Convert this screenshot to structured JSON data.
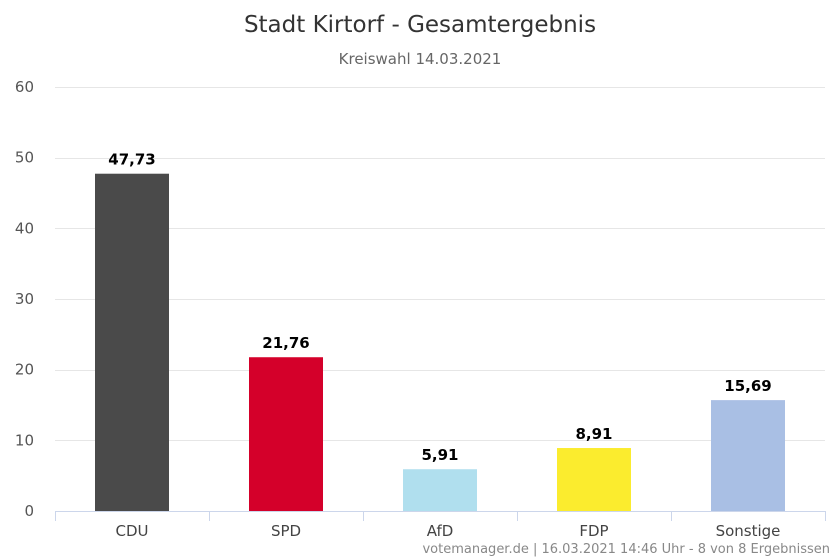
{
  "chart_data": {
    "type": "bar",
    "title": "Stadt Kirtorf - Gesamtergebnis",
    "subtitle": "Kreiswahl 14.03.2021",
    "categories": [
      "CDU",
      "SPD",
      "AfD",
      "FDP",
      "Sonstige"
    ],
    "values": [
      47.73,
      21.76,
      5.91,
      8.91,
      15.69
    ],
    "value_labels": [
      "47,73",
      "21,76",
      "5,91",
      "8,91",
      "15,69"
    ],
    "colors": [
      "#4a4a4a",
      "#d4002a",
      "#b0dfee",
      "#fbec2e",
      "#a9bfe4"
    ],
    "ylim": [
      0,
      60
    ],
    "yticks": [
      0,
      10,
      20,
      30,
      40,
      50,
      60
    ],
    "grid": true,
    "legend": "none",
    "credit": "votemanager.de | 16.03.2021 14:46 Uhr - 8 von 8 Ergebnissen"
  }
}
